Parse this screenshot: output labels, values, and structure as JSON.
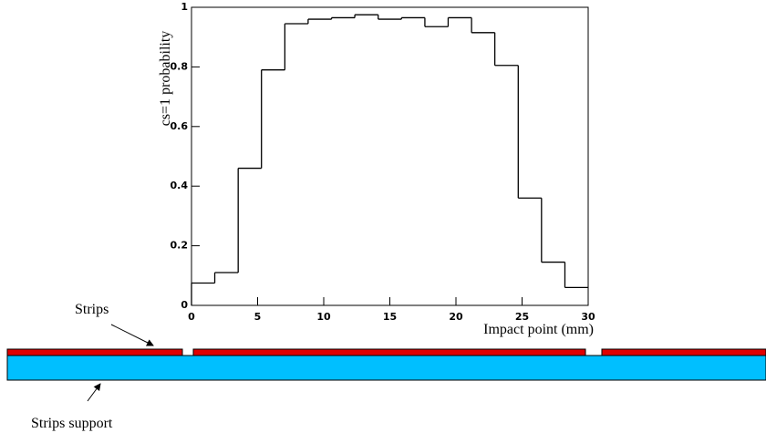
{
  "chart_data": {
    "type": "histogram",
    "ylabel": "cs=1 probability",
    "xlabel": "Impact point (mm)",
    "bins": [
      0,
      1.76,
      3.53,
      5.29,
      7.06,
      8.82,
      10.59,
      12.35,
      14.12,
      15.88,
      17.65,
      19.41,
      21.18,
      22.94,
      24.71,
      26.47,
      28.24,
      30
    ],
    "values": [
      0.075,
      0.11,
      0.46,
      0.79,
      0.945,
      0.96,
      0.965,
      0.975,
      0.96,
      0.965,
      0.935,
      0.965,
      0.915,
      0.805,
      0.36,
      0.145,
      0.06
    ],
    "color": "#000000",
    "xlim": [
      0,
      30
    ],
    "xticks": [
      0,
      5,
      10,
      15,
      20,
      25,
      30
    ],
    "ylim": [
      0,
      1
    ],
    "yticks": [
      0,
      0.2,
      0.4,
      0.6,
      0.8,
      1
    ]
  },
  "diagram": {
    "strips_label": "Strips",
    "support_label": "Strips support"
  }
}
